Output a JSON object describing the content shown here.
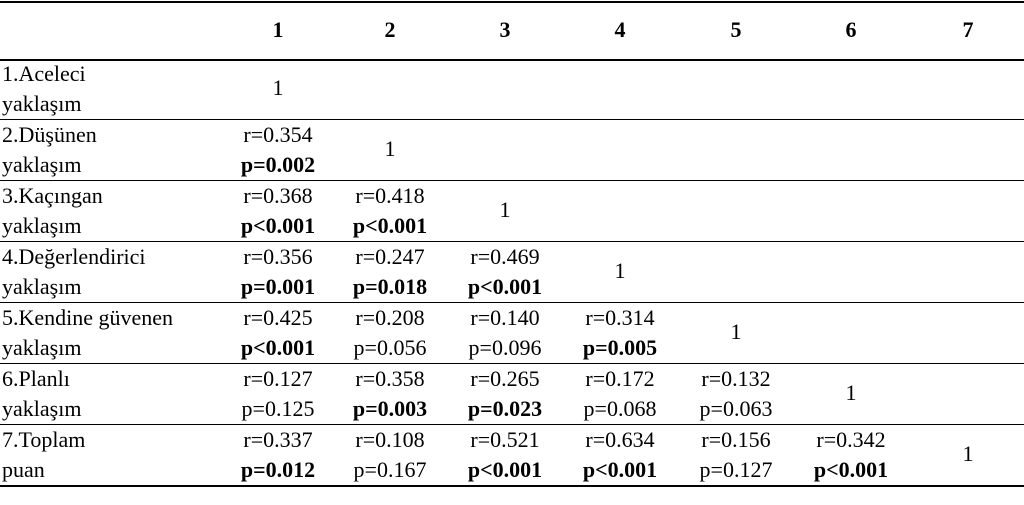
{
  "table": {
    "header": [
      "1",
      "2",
      "3",
      "4",
      "5",
      "6",
      "7"
    ],
    "rows": [
      {
        "label": [
          "1.Aceleci",
          "yaklaşım"
        ],
        "cells": [
          "1"
        ]
      },
      {
        "label": [
          "2.Düşünen",
          "yaklaşım"
        ],
        "cells": [
          {
            "r": "r=0.354",
            "p": "p=0.002",
            "bold": true
          },
          "1"
        ]
      },
      {
        "label": [
          "3.Kaçıngan",
          "yaklaşım"
        ],
        "cells": [
          {
            "r": "r=0.368",
            "p": "p<0.001",
            "bold": true
          },
          {
            "r": "r=0.418",
            "p": "p<0.001",
            "bold": true
          },
          "1"
        ]
      },
      {
        "label": [
          "4.Değerlendirici",
          "yaklaşım"
        ],
        "cells": [
          {
            "r": "r=0.356",
            "p": "p=0.001",
            "bold": true
          },
          {
            "r": "r=0.247",
            "p": "p=0.018",
            "bold": true
          },
          {
            "r": "r=0.469",
            "p": "p<0.001",
            "bold": true
          },
          "1"
        ]
      },
      {
        "label": [
          "5.Kendine güvenen",
          "yaklaşım"
        ],
        "cells": [
          {
            "r": "r=0.425",
            "p": "p<0.001",
            "bold": true
          },
          {
            "r": "r=0.208",
            "p": "p=0.056",
            "bold": false
          },
          {
            "r": "r=0.140",
            "p": "p=0.096",
            "bold": false
          },
          {
            "r": "r=0.314",
            "p": "p=0.005",
            "bold": true
          },
          "1"
        ]
      },
      {
        "label": [
          "6.Planlı",
          "yaklaşım"
        ],
        "cells": [
          {
            "r": "r=0.127",
            "p": "p=0.125",
            "bold": false
          },
          {
            "r": "r=0.358",
            "p": "p=0.003",
            "bold": true
          },
          {
            "r": "r=0.265",
            "p": "p=0.023",
            "bold": true
          },
          {
            "r": "r=0.172",
            "p": "p=0.068",
            "bold": false
          },
          {
            "r": "r=0.132",
            "p": "p=0.063",
            "bold": false
          },
          "1"
        ]
      },
      {
        "label": [
          "7.Toplam",
          "puan"
        ],
        "cells": [
          {
            "r": "r=0.337",
            "p": "p=0.012",
            "bold": true
          },
          {
            "r": "r=0.108",
            "p": "p=0.167",
            "bold": false
          },
          {
            "r": "r=0.521",
            "p": "p<0.001",
            "bold": true
          },
          {
            "r": "r=0.634",
            "p": "p<0.001",
            "bold": true
          },
          {
            "r": "r=0.156",
            "p": "p=0.127",
            "bold": false
          },
          {
            "r": "r=0.342",
            "p": "p<0.001",
            "bold": true
          },
          "1"
        ]
      }
    ]
  }
}
